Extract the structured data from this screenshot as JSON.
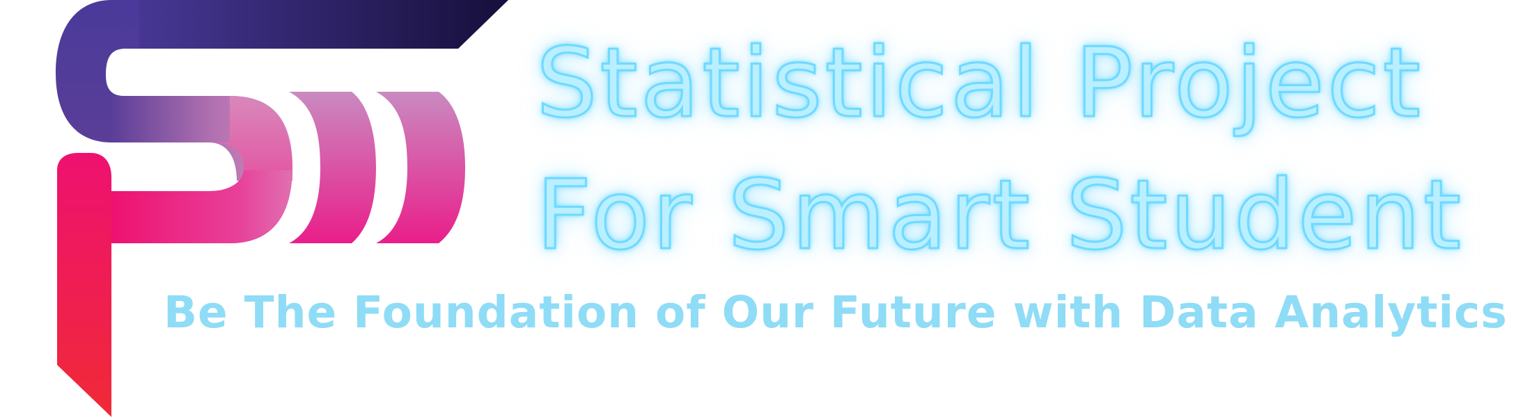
{
  "title": {
    "line1": "Statistical Project",
    "line2": "For Smart Student"
  },
  "tagline": "Be The Foundation of Our Future with Data Analytics",
  "logo": {
    "icon": "sps-monogram-logo",
    "colors": {
      "top_gradient": [
        "#4a3a9a",
        "#1a1340"
      ],
      "mid_gradient": [
        "#6a4aa0",
        "#d888c0"
      ],
      "bottom_gradient": [
        "#ee1166",
        "#f02a3a"
      ],
      "pink": "#e8308e"
    }
  },
  "colors": {
    "title_fill": "#b9efff",
    "title_glow": "#6fd9ff",
    "tagline": "#8fdcf6",
    "background": "#ffffff"
  }
}
